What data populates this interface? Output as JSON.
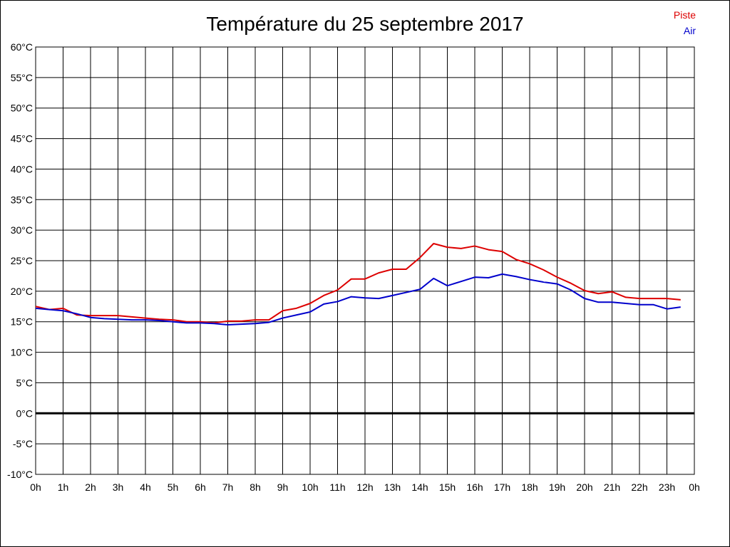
{
  "chart_data": {
    "type": "line",
    "title": "Température du 25 septembre 2017",
    "xlabel": "",
    "ylabel": "",
    "xlim": [
      0,
      24
    ],
    "ylim": [
      -10,
      60
    ],
    "grid": true,
    "legend_position": "top-right",
    "x_ticks": [
      "0h",
      "1h",
      "2h",
      "3h",
      "4h",
      "5h",
      "6h",
      "7h",
      "8h",
      "9h",
      "10h",
      "11h",
      "12h",
      "13h",
      "14h",
      "15h",
      "16h",
      "17h",
      "18h",
      "19h",
      "20h",
      "21h",
      "22h",
      "23h",
      "0h"
    ],
    "y_ticks": [
      "-10°C",
      "-5°C",
      "0°C",
      "5°C",
      "10°C",
      "15°C",
      "20°C",
      "25°C",
      "30°C",
      "35°C",
      "40°C",
      "45°C",
      "50°C",
      "55°C",
      "60°C"
    ],
    "x": [
      0,
      0.5,
      1,
      1.5,
      2,
      2.5,
      3,
      3.5,
      4,
      4.5,
      5,
      5.5,
      6,
      6.5,
      7,
      7.5,
      8,
      8.5,
      9,
      9.5,
      10,
      10.5,
      11,
      11.5,
      12,
      12.5,
      13,
      13.5,
      14,
      14.5,
      15,
      15.5,
      16,
      16.5,
      17,
      17.5,
      18,
      18.5,
      19,
      19.5,
      20,
      20.5,
      21,
      21.5,
      22,
      22.5,
      23,
      23.5
    ],
    "series": [
      {
        "name": "Piste",
        "color": "#dd0000",
        "values": [
          17.5,
          17.0,
          17.2,
          16.1,
          16.0,
          16.0,
          16.0,
          15.8,
          15.6,
          15.4,
          15.3,
          15.0,
          15.0,
          14.8,
          15.1,
          15.1,
          15.3,
          15.3,
          16.8,
          17.2,
          18.0,
          19.3,
          20.2,
          22.0,
          22.0,
          23.0,
          23.6,
          23.6,
          25.5,
          27.8,
          27.2,
          27.0,
          27.4,
          26.8,
          26.5,
          25.2,
          24.5,
          23.5,
          22.3,
          21.3,
          20.1,
          19.6,
          19.9,
          19.0,
          18.8,
          18.8,
          18.8,
          18.6
        ]
      },
      {
        "name": "Air",
        "color": "#0000cc",
        "values": [
          17.2,
          17.0,
          16.8,
          16.3,
          15.7,
          15.5,
          15.4,
          15.3,
          15.3,
          15.2,
          15.0,
          14.8,
          14.8,
          14.7,
          14.5,
          14.6,
          14.7,
          14.9,
          15.6,
          16.1,
          16.6,
          17.9,
          18.3,
          19.1,
          18.9,
          18.8,
          19.3,
          19.8,
          20.3,
          22.1,
          20.9,
          21.6,
          22.3,
          22.2,
          22.8,
          22.4,
          21.9,
          21.5,
          21.2,
          20.2,
          18.8,
          18.2,
          18.2,
          18.0,
          17.8,
          17.8,
          17.1,
          17.4
        ]
      }
    ]
  }
}
